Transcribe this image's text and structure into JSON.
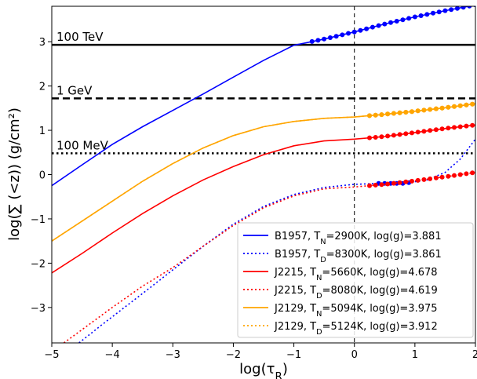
{
  "chart_data": {
    "type": "line",
    "xlabel": "log(τ_R)",
    "ylabel": "log(∑ (<z)) (g/cm²)",
    "xlim": [
      -5,
      2
    ],
    "ylim": [
      -3.8,
      3.8
    ],
    "xticks": [
      "−5",
      "−4",
      "−3",
      "−2",
      "−1",
      "0",
      "1",
      "2"
    ],
    "yticks": [
      "−3",
      "−2",
      "−1",
      "0",
      "1",
      "2",
      "3"
    ],
    "grid": false,
    "legend_position": "lower-right",
    "vertical_line": {
      "x": 0,
      "style": "dashed"
    },
    "horizontal_lines": [
      {
        "label": "100 TeV",
        "y": 2.93,
        "style": "solid"
      },
      {
        "label": "1 GeV",
        "y": 1.72,
        "style": "dashed"
      },
      {
        "label": "100 MeV",
        "y": 0.48,
        "style": "dotted"
      }
    ],
    "series": [
      {
        "name": "B1957, T_N=2900K, log(g)=3.881",
        "color": "#0000ff",
        "style": "solid",
        "x": [
          -5,
          -4.5,
          -4,
          -3.5,
          -3,
          -2.5,
          -2,
          -1.5,
          -1,
          -0.5,
          0,
          0.5,
          1,
          1.5,
          2
        ],
        "y": [
          -0.25,
          0.22,
          0.68,
          1.08,
          1.45,
          1.82,
          2.2,
          2.58,
          2.92,
          3.06,
          3.22,
          3.4,
          3.56,
          3.7,
          3.83
        ],
        "marker_from_x": -0.7
      },
      {
        "name": "B1957, T_D=8300K, log(g)=3.861",
        "color": "#0000ff",
        "style": "dotted",
        "x": [
          -4.55,
          -4.2,
          -3.8,
          -3.4,
          -3,
          -2.5,
          -2,
          -1.5,
          -1,
          -0.5,
          0,
          0.4,
          0.8,
          1.2,
          1.5,
          1.75,
          2
        ],
        "y": [
          -3.8,
          -3.42,
          -3.0,
          -2.58,
          -2.15,
          -1.62,
          -1.12,
          -0.72,
          -0.45,
          -0.29,
          -0.22,
          -0.2,
          -0.2,
          -0.12,
          0.05,
          0.35,
          0.8
        ],
        "marker_range": [
          0.4,
          0.9
        ]
      },
      {
        "name": "J2215, T_N=5660K, log(g)=4.678",
        "color": "#ff0000",
        "style": "solid",
        "x": [
          -5,
          -4.5,
          -4,
          -3.5,
          -3,
          -2.5,
          -2,
          -1.5,
          -1,
          -0.5,
          0,
          0.5,
          1,
          1.5,
          2
        ],
        "y": [
          -2.22,
          -1.78,
          -1.32,
          -0.88,
          -0.48,
          -0.12,
          0.18,
          0.45,
          0.65,
          0.76,
          0.8,
          0.86,
          0.95,
          1.04,
          1.12
        ],
        "marker_from_x": 0.25
      },
      {
        "name": "J2215, T_D=8080K, log(g)=4.619",
        "color": "#ff0000",
        "style": "dotted",
        "x": [
          -4.8,
          -4.5,
          -4,
          -3.5,
          -3,
          -2.5,
          -2,
          -1.5,
          -1,
          -0.5,
          0,
          0.5,
          1,
          1.5,
          2
        ],
        "y": [
          -3.8,
          -3.5,
          -3.0,
          -2.52,
          -2.1,
          -1.62,
          -1.15,
          -0.75,
          -0.48,
          -0.32,
          -0.28,
          -0.22,
          -0.14,
          -0.05,
          0.05
        ],
        "marker_from_x": 0.25
      },
      {
        "name": "J2129, T_N=5094K, log(g)=3.975",
        "color": "#ffa500",
        "style": "solid",
        "x": [
          -5,
          -4.5,
          -4,
          -3.5,
          -3,
          -2.5,
          -2,
          -1.5,
          -1,
          -0.5,
          0,
          0.5,
          1,
          1.5,
          2
        ],
        "y": [
          -1.5,
          -1.05,
          -0.6,
          -0.15,
          0.25,
          0.6,
          0.88,
          1.08,
          1.2,
          1.27,
          1.3,
          1.36,
          1.43,
          1.51,
          1.6
        ],
        "marker_from_x": 0.25
      },
      {
        "name": "J2129, T_D=5124K, log(g)=3.912",
        "color": "#ffa500",
        "style": "dotted",
        "x": [
          -5,
          -4.5,
          -4,
          -3.5,
          -3,
          -2.5,
          -2,
          -1.5,
          -1,
          -0.5,
          0,
          0.5,
          1,
          1.5,
          2
        ],
        "y": [
          -1.5,
          -1.05,
          -0.6,
          -0.15,
          0.25,
          0.6,
          0.88,
          1.08,
          1.2,
          1.27,
          1.3,
          1.36,
          1.43,
          1.51,
          1.6
        ],
        "marker_from_x": 0.25
      }
    ]
  }
}
